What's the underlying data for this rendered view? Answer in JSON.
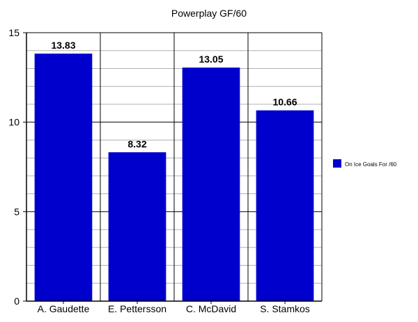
{
  "chart_data": {
    "type": "bar",
    "title": "Powerplay GF/60",
    "categories": [
      "A. Gaudette",
      "E. Pettersson",
      "C. McDavid",
      "S. Stamkos"
    ],
    "series": [
      {
        "name": "On Ice Goals For /60",
        "values": [
          13.83,
          8.32,
          13.05,
          10.66
        ]
      }
    ],
    "data_labels": [
      "13.83",
      "8.32",
      "13.05",
      "10.66"
    ],
    "ylim": [
      0,
      15
    ],
    "yticks": [
      0,
      5,
      10,
      15
    ],
    "minor_step": 1,
    "grid": true,
    "legend_position": "right",
    "bar_color": "#0000cc"
  }
}
